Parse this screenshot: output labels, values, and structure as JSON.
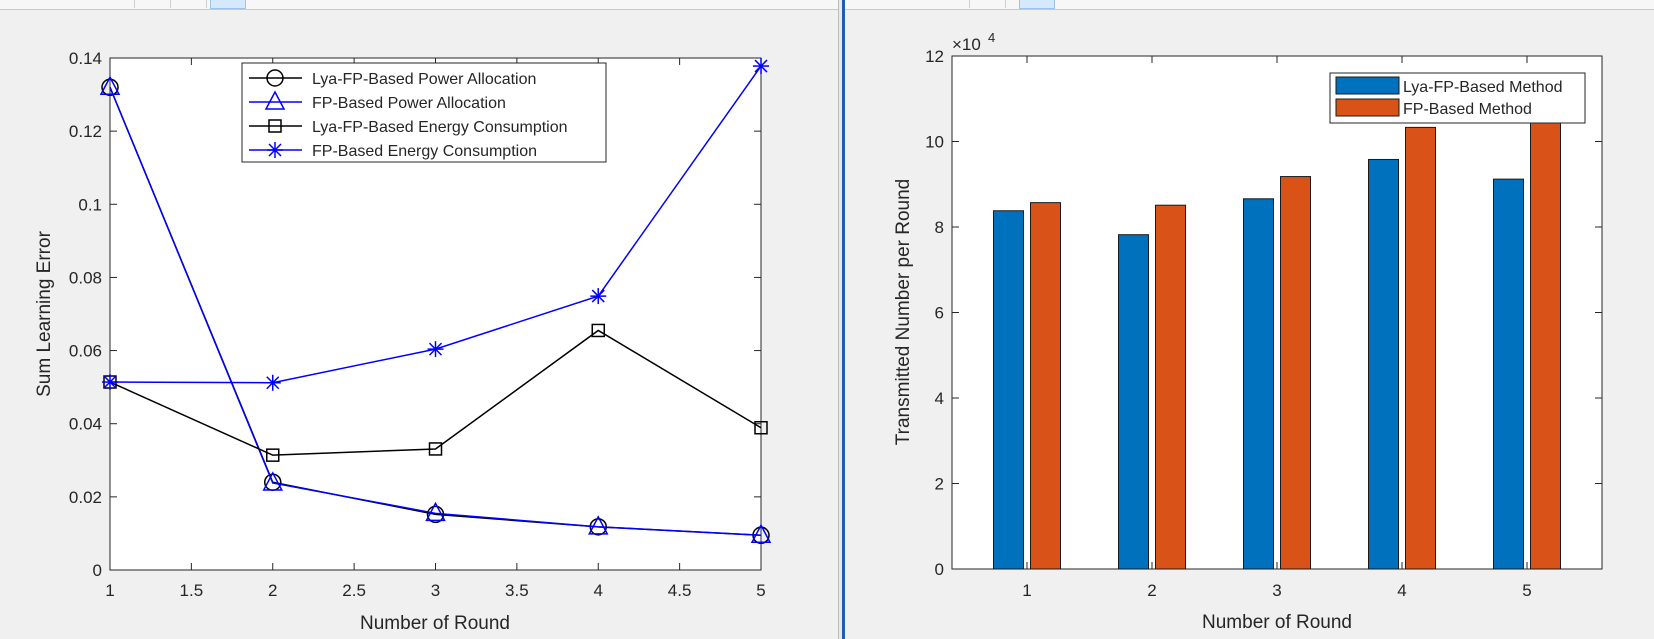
{
  "chart_data": [
    {
      "type": "line",
      "xlabel": "Number of Round",
      "ylabel": "Sum Learning Error",
      "xlim": [
        1,
        5
      ],
      "ylim": [
        0,
        0.14
      ],
      "xticks": [
        "1",
        "1.5",
        "2",
        "2.5",
        "3",
        "3.5",
        "4",
        "4.5",
        "5"
      ],
      "yticks": [
        "0",
        "0.02",
        "0.04",
        "0.06",
        "0.08",
        "0.1",
        "0.12",
        "0.14"
      ],
      "legend_position": "top-center",
      "series": [
        {
          "name": "Lya-FP-Based Power Allocation",
          "marker": "circle",
          "color": "#000000",
          "x": [
            1,
            2,
            3,
            4,
            5
          ],
          "values": [
            0.132,
            0.024,
            0.0152,
            0.0118,
            0.0095
          ]
        },
        {
          "name": "FP-Based Power Allocation",
          "marker": "triangle",
          "color": "#0000ff",
          "x": [
            1,
            2,
            3,
            4,
            5
          ],
          "values": [
            0.132,
            0.0238,
            0.0155,
            0.0118,
            0.0095
          ]
        },
        {
          "name": "Lya-FP-Based Energy Consumption",
          "marker": "square",
          "color": "#000000",
          "x": [
            1,
            2,
            3,
            4,
            5
          ],
          "values": [
            0.0514,
            0.0314,
            0.0331,
            0.0655,
            0.0389
          ]
        },
        {
          "name": "FP-Based Energy Consumption",
          "marker": "asterisk",
          "color": "#0000ff",
          "x": [
            1,
            2,
            3,
            4,
            5
          ],
          "values": [
            0.0514,
            0.0512,
            0.0604,
            0.0749,
            0.1378
          ]
        }
      ]
    },
    {
      "type": "bar",
      "xlabel": "Number of Round",
      "ylabel": "Transmitted Number per Round",
      "exponent_label": "×10",
      "exponent_power": "4",
      "categories": [
        "1",
        "2",
        "3",
        "4",
        "5"
      ],
      "ylim": [
        0,
        12
      ],
      "yticks": [
        "0",
        "2",
        "4",
        "6",
        "8",
        "10",
        "12"
      ],
      "legend_position": "top-right",
      "series": [
        {
          "name": "Lya-FP-Based Method",
          "color": "#0072bd",
          "values": [
            8.38,
            7.82,
            8.66,
            9.58,
            9.12
          ]
        },
        {
          "name": "FP-Based Method",
          "color": "#d95319",
          "values": [
            8.57,
            8.51,
            9.18,
            10.33,
            10.45
          ]
        }
      ]
    }
  ]
}
